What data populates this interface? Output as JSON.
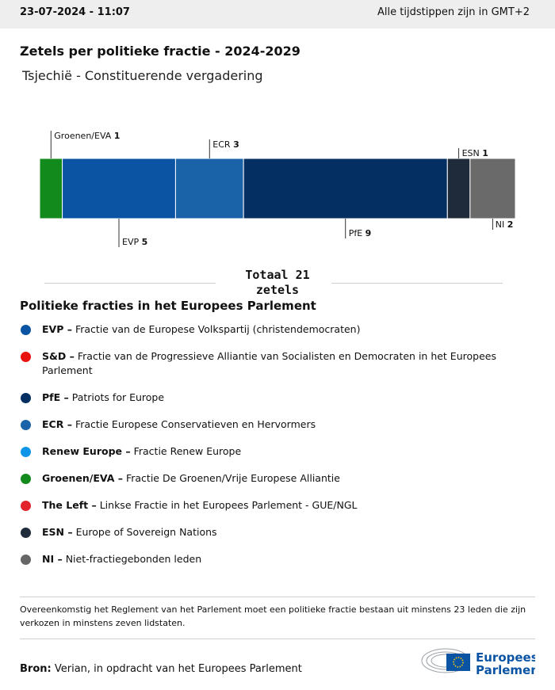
{
  "header": {
    "date": "23-07-2024 - 11:07",
    "timezone": "Alle tijdstippen zijn in GMT+2"
  },
  "chart_data": {
    "type": "stacked-bar",
    "title": "Zetels per politieke fractie - 2024-2029",
    "subtitle": "Tsjechië - Constituerende vergadering",
    "series": [
      {
        "name": "Groenen/EVA",
        "color": "#138a1c",
        "values": [
          1
        ]
      },
      {
        "name": "EVP",
        "color": "#0b54a4",
        "values": [
          5
        ]
      },
      {
        "name": "ECR",
        "color": "#1b63a8",
        "values": [
          3
        ]
      },
      {
        "name": "PfE",
        "color": "#032f62",
        "values": [
          9
        ]
      },
      {
        "name": "ESN",
        "color": "#1f2a3a",
        "values": [
          1
        ]
      },
      {
        "name": "NI",
        "color": "#6a6a6a",
        "values": [
          2
        ]
      }
    ],
    "total_label": "Totaal 21 zetels"
  },
  "legend": {
    "title": "Politieke fracties in het Europees Parlement",
    "items": [
      {
        "abbr": "EVP –",
        "name": "Fractie van de Europese Volkspartij (christendemocraten)",
        "color": "#0b54a4"
      },
      {
        "abbr": "S&D –",
        "name": "Fractie van de Progressieve Alliantie van Socialisten en Democraten in het Europees Parlement",
        "color": "#e8120e"
      },
      {
        "abbr": "PfE –",
        "name": "Patriots for Europe",
        "color": "#032f62"
      },
      {
        "abbr": "ECR –",
        "name": "Fractie Europese Conservatieven en Hervormers",
        "color": "#1b63a8"
      },
      {
        "abbr": "Renew Europe –",
        "name": "Fractie Renew Europe",
        "color": "#0d96e8"
      },
      {
        "abbr": "Groenen/EVA –",
        "name": "Fractie De Groenen/Vrije Europese Alliantie",
        "color": "#138a1c"
      },
      {
        "abbr": "The Left –",
        "name": "Linkse Fractie in het Europees Parlement - GUE/NGL",
        "color": "#e3232b"
      },
      {
        "abbr": "ESN –",
        "name": "Europe of Sovereign Nations",
        "color": "#1f2a3a"
      },
      {
        "abbr": "NI –",
        "name": "Niet-fractiegebonden leden",
        "color": "#666666"
      }
    ]
  },
  "footnote": "Overeenkomstig het Reglement van het Parlement moet een politieke fractie bestaan uit minstens 23 leden die zijn verkozen in minstens zeven lidstaten.",
  "source": {
    "label": "Bron:",
    "text": "Verian, in opdracht van het Europees Parlement"
  },
  "logo": {
    "line1": "Europees",
    "line2": "Parlement"
  }
}
